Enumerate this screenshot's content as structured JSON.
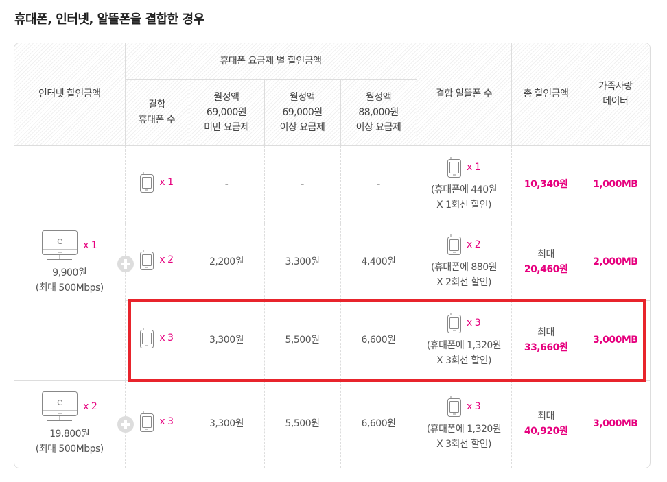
{
  "title": "휴대폰, 인터넷, 알뜰폰을 결합한 경우",
  "header": {
    "internet": "인터넷 할인금액",
    "phone_group": "휴대폰 요금제 별 할인금액",
    "phone_count_1": "결합",
    "phone_count_2": "휴대폰 수",
    "plan_a": [
      "월정액",
      "69,000원",
      "미만 요금제"
    ],
    "plan_b": [
      "월정액",
      "69,000원",
      "이상 요금제"
    ],
    "plan_c": [
      "월정액",
      "88,000원",
      "이상 요금제"
    ],
    "mvno": "결합 알뜰폰 수",
    "total": "총 할인금액",
    "data_1": "가족사랑",
    "data_2": "데이터"
  },
  "internet": [
    {
      "count": "x 1",
      "price": "9,900원",
      "speed": "(최대 500Mbps)"
    },
    {
      "count": "x 2",
      "price": "19,800원",
      "speed": "(최대 500Mbps)"
    }
  ],
  "rows": [
    {
      "phones": "x 1",
      "a": "-",
      "b": "-",
      "c": "-",
      "mvno": "x 1",
      "mvno_note1": "(휴대폰에 440원",
      "mvno_note2": "X 1회선 할인)",
      "total_prefix": "",
      "total": "10,340원",
      "data": "1,000MB"
    },
    {
      "phones": "x 2",
      "a": "2,200원",
      "b": "3,300원",
      "c": "4,400원",
      "mvno": "x 2",
      "mvno_note1": "(휴대폰에 880원",
      "mvno_note2": "X 2회선 할인)",
      "total_prefix": "최대",
      "total": "20,460원",
      "data": "2,000MB"
    },
    {
      "phones": "x 3",
      "a": "3,300원",
      "b": "5,500원",
      "c": "6,600원",
      "mvno": "x 3",
      "mvno_note1": "(휴대폰에 1,320원",
      "mvno_note2": "X 3회선 할인)",
      "total_prefix": "최대",
      "total": "33,660원",
      "data": "3,000MB"
    },
    {
      "phones": "x 3",
      "a": "3,300원",
      "b": "5,500원",
      "c": "6,600원",
      "mvno": "x 3",
      "mvno_note1": "(휴대폰에 1,320원",
      "mvno_note2": "X 3회선 할인)",
      "total_prefix": "최대",
      "total": "40,920원",
      "data": "3,000MB"
    }
  ],
  "colors": {
    "accent": "#e6007e",
    "highlight": "#e8242c"
  }
}
